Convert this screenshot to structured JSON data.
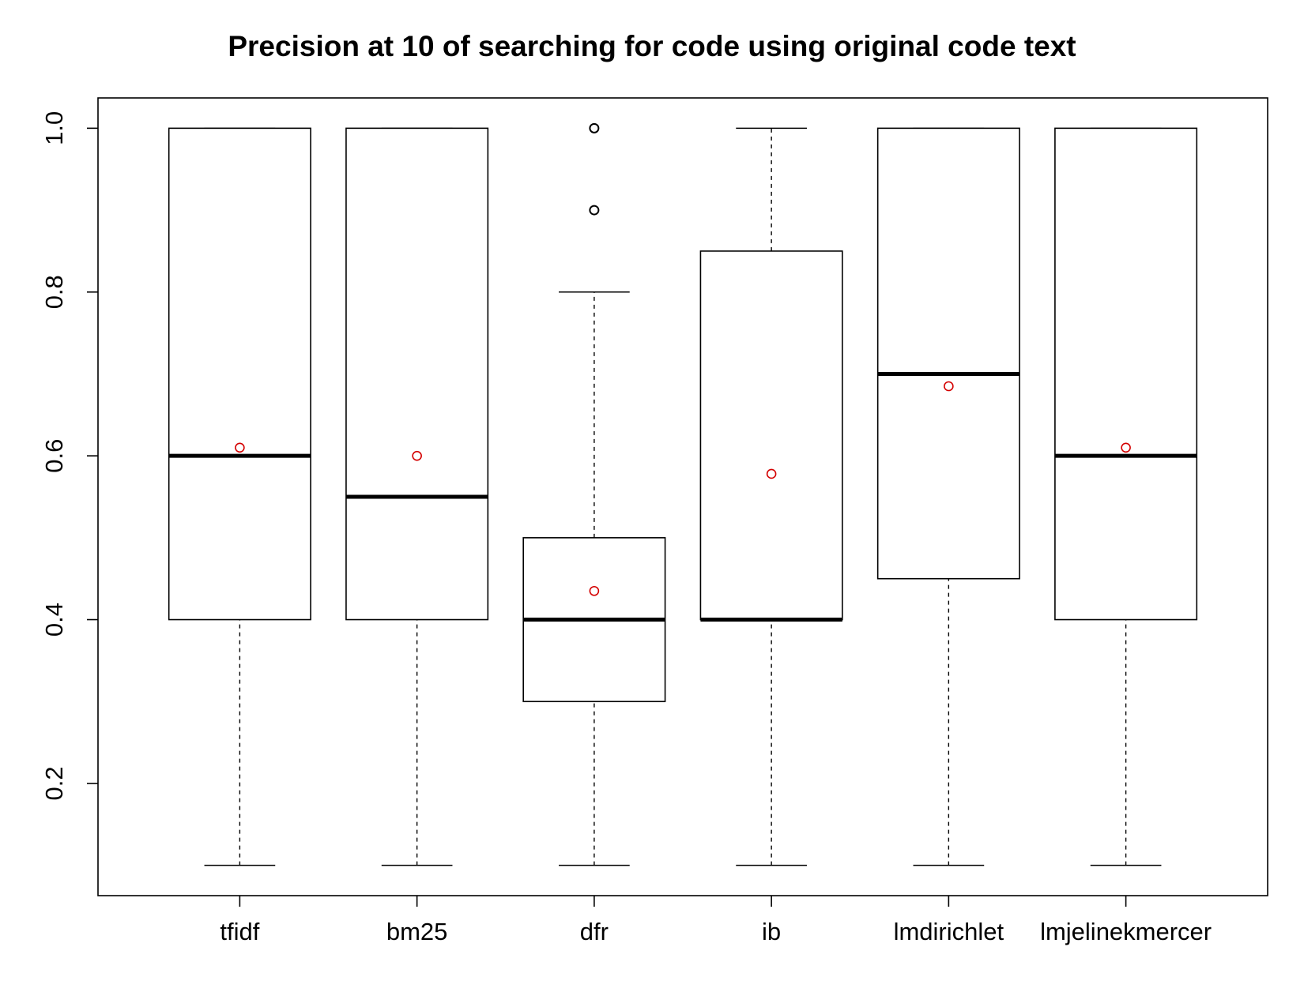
{
  "chart_data": {
    "type": "boxplot",
    "title": "Precision at 10 of searching for code using original code text",
    "xlabel": "",
    "ylabel": "",
    "ylim": [
      0.063,
      1.037
    ],
    "y_ticks": [
      0.2,
      0.4,
      0.6,
      0.8,
      1.0
    ],
    "y_tick_labels": [
      "0.2",
      "0.4",
      "0.6",
      "0.8",
      "1.0"
    ],
    "grid": false,
    "categories": [
      "tfidf",
      "bm25",
      "dfr",
      "ib",
      "lmdirichlet",
      "lmjelinekmercer"
    ],
    "boxes": [
      {
        "name": "tfidf",
        "whisker_low": 0.1,
        "q1": 0.4,
        "median": 0.6,
        "q3": 1.0,
        "whisker_high": 1.0,
        "mean": 0.61,
        "outliers": []
      },
      {
        "name": "bm25",
        "whisker_low": 0.1,
        "q1": 0.4,
        "median": 0.55,
        "q3": 1.0,
        "whisker_high": 1.0,
        "mean": 0.6,
        "outliers": []
      },
      {
        "name": "dfr",
        "whisker_low": 0.1,
        "q1": 0.3,
        "median": 0.4,
        "q3": 0.5,
        "whisker_high": 0.8,
        "mean": 0.435,
        "outliers": [
          0.9,
          1.0
        ]
      },
      {
        "name": "ib",
        "whisker_low": 0.1,
        "q1": 0.4,
        "median": 0.4,
        "q3": 0.85,
        "whisker_high": 1.0,
        "mean": 0.578,
        "outliers": []
      },
      {
        "name": "lmdirichlet",
        "whisker_low": 0.1,
        "q1": 0.45,
        "median": 0.7,
        "q3": 1.0,
        "whisker_high": 1.0,
        "mean": 0.685,
        "outliers": []
      },
      {
        "name": "lmjelinekmercer",
        "whisker_low": 0.1,
        "q1": 0.4,
        "median": 0.6,
        "q3": 1.0,
        "whisker_high": 1.0,
        "mean": 0.61,
        "outliers": []
      }
    ],
    "colors": {
      "box": "#000000",
      "mean_marker": "#d40000",
      "outlier": "#000000"
    }
  }
}
